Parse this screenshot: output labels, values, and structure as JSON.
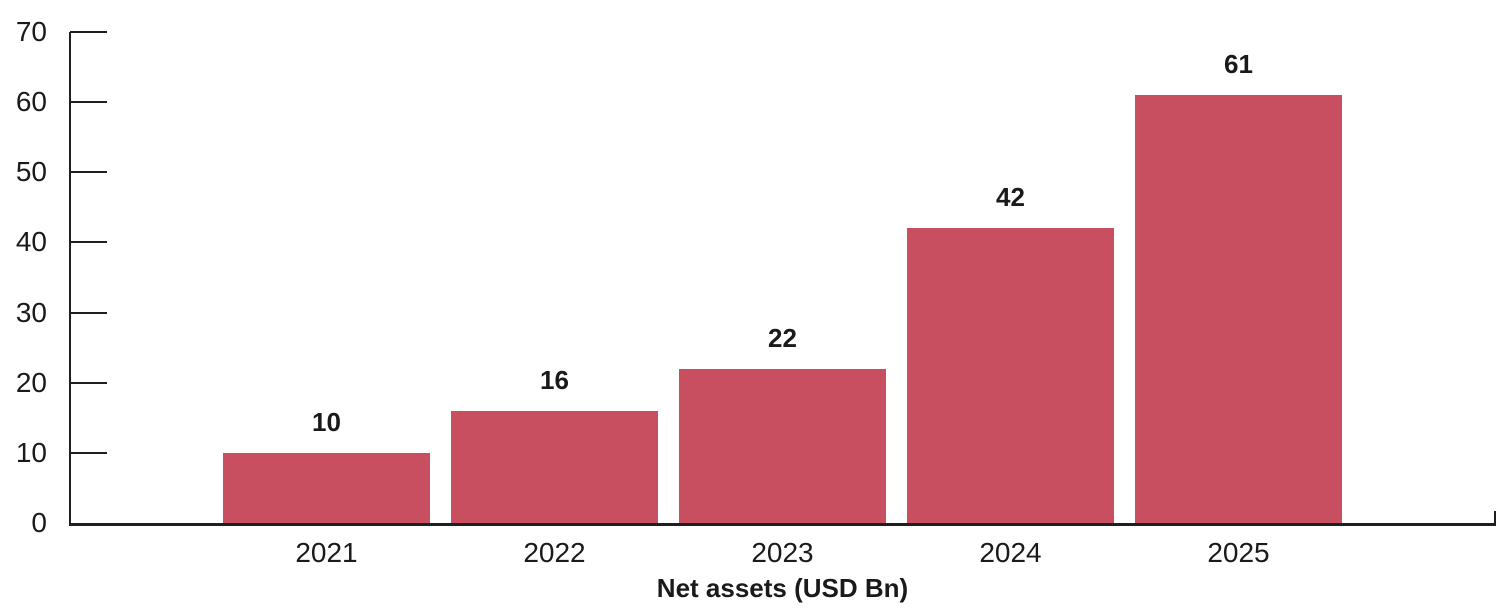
{
  "chart_data": {
    "type": "bar",
    "categories": [
      "2021",
      "2022",
      "2023",
      "2024",
      "2025"
    ],
    "values": [
      10,
      16,
      22,
      42,
      61
    ],
    "data_labels": [
      "10",
      "16",
      "22",
      "42",
      "61"
    ],
    "title": "",
    "xlabel": "Net assets (USD Bn)",
    "ylabel": "",
    "ylim": [
      0,
      70
    ],
    "yticks": [
      0,
      10,
      20,
      30,
      40,
      50,
      60,
      70
    ],
    "grid": false,
    "legend_position": "none",
    "bar_color": "#c74f60",
    "axis_color": "#1f1f1f",
    "text_color": "#1a1a1a"
  }
}
